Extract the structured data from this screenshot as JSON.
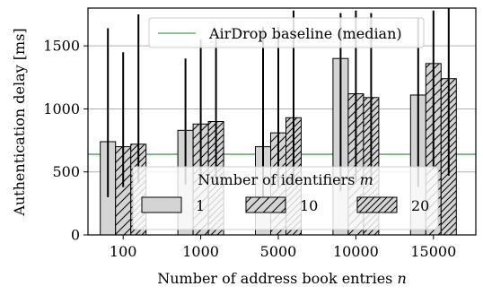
{
  "chart_data": {
    "type": "bar",
    "title": "",
    "xlabel": "Number of address book entries n",
    "ylabel": "Authentication delay [ms]",
    "categories": [
      "100",
      "1000",
      "5000",
      "10000",
      "15000"
    ],
    "ylim": [
      0,
      1800
    ],
    "yticks": [
      0,
      500,
      1000,
      1500
    ],
    "grid": true,
    "legend_title": "Number of identifiers m",
    "legend_placement": "center-bottom",
    "series": [
      {
        "name": "1",
        "hatch": "none",
        "values": [
          740,
          830,
          700,
          1400,
          1110
        ],
        "err_low": [
          300,
          400,
          280,
          350,
          380
        ],
        "err_high": [
          1640,
          1400,
          1650,
          1760,
          1720
        ]
      },
      {
        "name": "10",
        "hatch": "single",
        "values": [
          700,
          880,
          810,
          1120,
          1360
        ],
        "err_low": [
          380,
          430,
          380,
          420,
          520
        ],
        "err_high": [
          1450,
          1550,
          1650,
          1780,
          1780
        ]
      },
      {
        "name": "20",
        "hatch": "double",
        "values": [
          720,
          900,
          930,
          1090,
          1240
        ],
        "err_low": [
          410,
          440,
          400,
          430,
          470
        ],
        "err_high": [
          1750,
          1570,
          1780,
          1760,
          1800
        ]
      }
    ],
    "reference_line": {
      "label": "AirDrop baseline (median)",
      "value": 640,
      "color": "#6aaf6a"
    },
    "colors": {
      "bar_fill": "#d4d4d4",
      "edge": "#000000",
      "grid": "#b0b0b0"
    }
  }
}
